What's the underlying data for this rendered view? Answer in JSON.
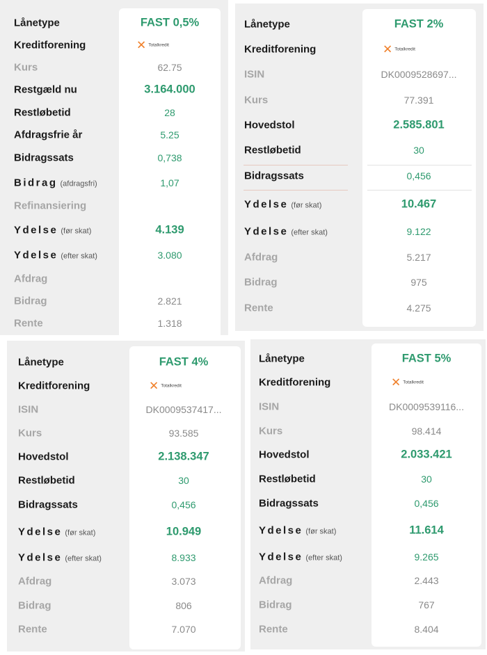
{
  "brand": {
    "green": "#2e9a6e",
    "orange": "#f0812c",
    "grey_text": "#a6a6a6"
  },
  "labels": {
    "laanetype": "Lånetype",
    "kreditforening": "Kreditforening",
    "isin": "ISIN",
    "kurs": "Kurs",
    "restgaeld": "Restgæld nu",
    "hovedstol": "Hovedstol",
    "restlobetid": "Restløbetid",
    "afdragsfrie": "Afdragsfrie år",
    "bidragssats": "Bidragssats",
    "bidrag": "Bidrag",
    "afdragsfri_sub": "(afdragsfri)",
    "refinansiering": "Refinansiering",
    "ydelse": "Ydelse",
    "for_skat": "(før skat)",
    "efter_skat": "(efter skat)",
    "afdrag": "Afdrag",
    "rente": "Rente"
  },
  "logo": {
    "icon": "totalkredit-x-icon",
    "text": "Totalkredit"
  },
  "cards": [
    {
      "loan_type": "FAST 0,5%",
      "kurs": "62.75",
      "restgaeld": "3.164.000",
      "restlobetid": "28",
      "afdragsfrie": "5.25",
      "bidragssats": "0,738",
      "bidrag_afdragsfri": "1,07",
      "refinansiering": "",
      "ydelse_for": "4.139",
      "ydelse_efter": "3.080",
      "afdrag": "",
      "bidrag": "2.821",
      "rente": "1.318"
    },
    {
      "loan_type": "FAST 2%",
      "isin": "DK0009528697...",
      "kurs": "77.391",
      "hovedstol": "2.585.801",
      "restlobetid": "30",
      "bidragssats": "0,456",
      "ydelse_for": "10.467",
      "ydelse_efter": "9.122",
      "afdrag": "5.217",
      "bidrag": "975",
      "rente": "4.275"
    },
    {
      "loan_type": "FAST 4%",
      "isin": "DK0009537417...",
      "kurs": "93.585",
      "hovedstol": "2.138.347",
      "restlobetid": "30",
      "bidragssats": "0,456",
      "ydelse_for": "10.949",
      "ydelse_efter": "8.933",
      "afdrag": "3.073",
      "bidrag": "806",
      "rente": "7.070"
    },
    {
      "loan_type": "FAST 5%",
      "isin": "DK0009539116...",
      "kurs": "98.414",
      "hovedstol": "2.033.421",
      "restlobetid": "30",
      "bidragssats": "0,456",
      "ydelse_for": "11.614",
      "ydelse_efter": "9.265",
      "afdrag": "2.443",
      "bidrag": "767",
      "rente": "8.404"
    }
  ]
}
